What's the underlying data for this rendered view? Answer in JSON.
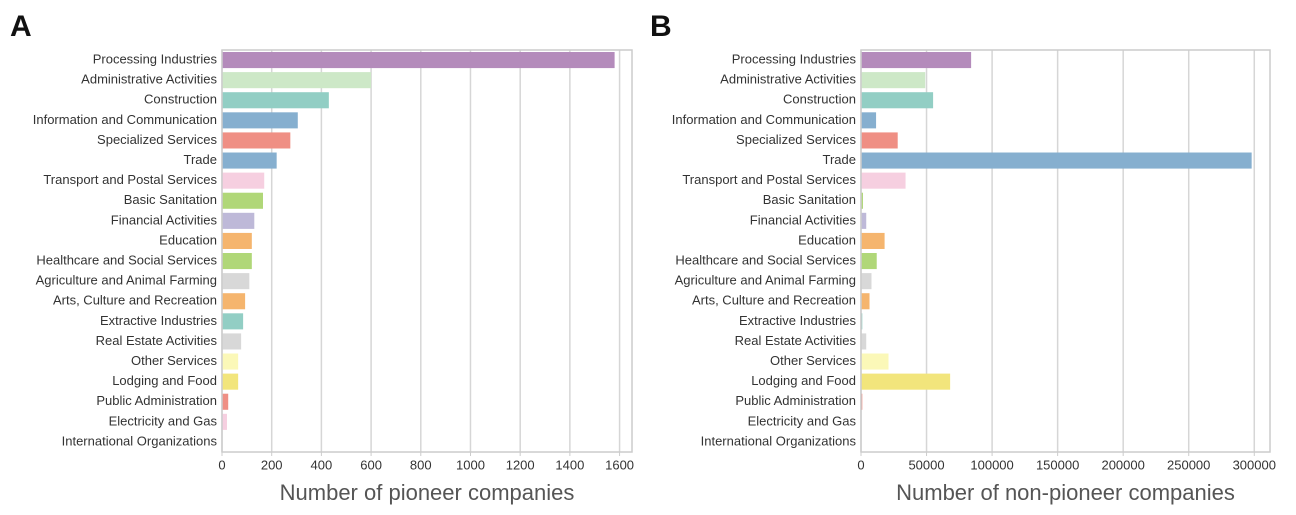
{
  "chart_data": [
    {
      "type": "barh",
      "panel": "A",
      "xlabel": "Number of pioneer companies",
      "categories": [
        "Processing Industries",
        "Administrative Activities",
        "Construction",
        "Information and Communication",
        "Specialized Services",
        "Trade",
        "Transport and Postal Services",
        "Basic Sanitation",
        "Financial Activities",
        "Education",
        "Healthcare and Social Services",
        "Agriculture and Animal Farming",
        "Arts, Culture and Recreation",
        "Extractive Industries",
        "Real Estate Activities",
        "Other Services",
        "Lodging and Food",
        "Public Administration",
        "Electricity and Gas",
        "International Organizations"
      ],
      "values": [
        1580,
        600,
        430,
        305,
        275,
        220,
        170,
        165,
        130,
        120,
        120,
        110,
        93,
        85,
        77,
        65,
        65,
        25,
        20,
        0
      ],
      "colors": [
        "#b48bbb",
        "#cde8c7",
        "#92cec4",
        "#86afcf",
        "#ef8f84",
        "#86afcf",
        "#f6cfe0",
        "#b0d778",
        "#beb9d8",
        "#f5b56e",
        "#b0d778",
        "#d8d8d8",
        "#f5b56e",
        "#92cec4",
        "#d8d8d8",
        "#fbf8b8",
        "#f2e57c",
        "#ef8f84",
        "#f6cfe0",
        "#cccccc"
      ],
      "xlim": [
        0,
        1650
      ],
      "xticks": [
        0,
        200,
        400,
        600,
        800,
        1000,
        1200,
        1400,
        1600
      ],
      "grid": true
    },
    {
      "type": "barh",
      "panel": "B",
      "xlabel": "Number of non-pioneer companies",
      "categories": [
        "Processing Industries",
        "Administrative Activities",
        "Construction",
        "Information and Communication",
        "Specialized Services",
        "Trade",
        "Transport and Postal Services",
        "Basic Sanitation",
        "Financial Activities",
        "Education",
        "Healthcare and Social Services",
        "Agriculture and Animal Farming",
        "Arts, Culture and Recreation",
        "Extractive Industries",
        "Real Estate Activities",
        "Other Services",
        "Lodging and Food",
        "Public Administration",
        "Electricity and Gas",
        "International Organizations"
      ],
      "values": [
        84000,
        49000,
        55000,
        11500,
        28000,
        298000,
        34000,
        1500,
        4000,
        18000,
        12000,
        8000,
        6500,
        1000,
        4000,
        21000,
        68000,
        1000,
        200,
        0
      ],
      "colors": [
        "#b48bbb",
        "#cde8c7",
        "#92cec4",
        "#86afcf",
        "#ef8f84",
        "#86afcf",
        "#f6cfe0",
        "#b0d778",
        "#beb9d8",
        "#f5b56e",
        "#b0d778",
        "#d8d8d8",
        "#f5b56e",
        "#92cec4",
        "#d8d8d8",
        "#fbf8b8",
        "#f2e57c",
        "#ef8f84",
        "#f6cfe0",
        "#cccccc"
      ],
      "xlim": [
        0,
        312000
      ],
      "xticks": [
        0,
        50000,
        100000,
        150000,
        200000,
        250000,
        300000
      ],
      "grid": true
    }
  ]
}
